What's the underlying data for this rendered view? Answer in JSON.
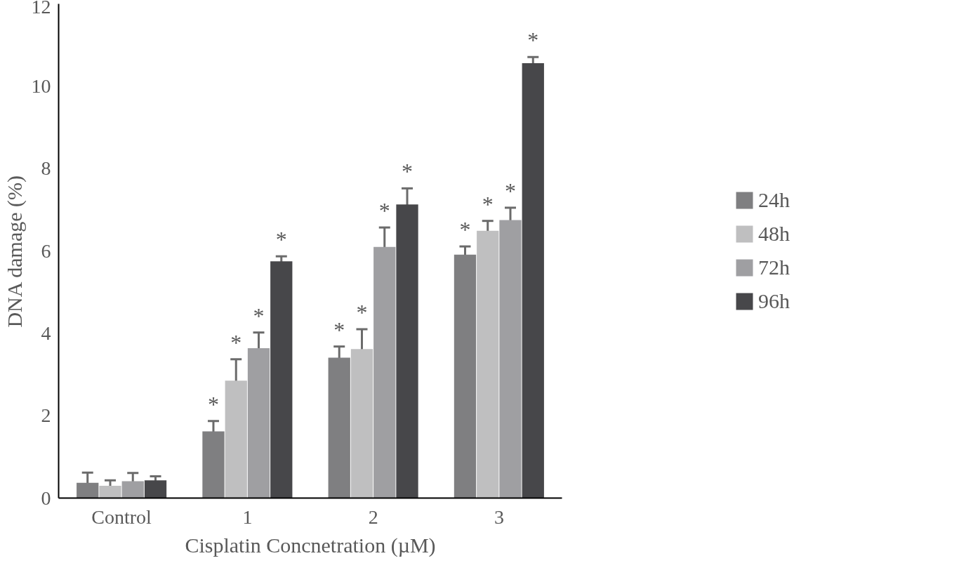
{
  "chart_data": {
    "type": "bar",
    "xlabel": "Cisplatin Concnetration (µM)",
    "ylabel": "DNA damage (%)",
    "categories": [
      "Control",
      "1",
      "2",
      "3"
    ],
    "ylim": [
      0,
      12
    ],
    "yticks": [
      0,
      2,
      4,
      6,
      8,
      10,
      12
    ],
    "grid": false,
    "legend": "right",
    "series": [
      {
        "name": "24h",
        "color": "#7f7f81",
        "values": [
          0.37,
          1.62,
          3.41,
          5.91
        ],
        "errors": [
          0.25,
          0.25,
          0.27,
          0.2
        ],
        "value_labels": [
          null,
          "*",
          "*",
          "*"
        ]
      },
      {
        "name": "48h",
        "color": "#bfbfc0",
        "values": [
          0.3,
          2.85,
          3.62,
          6.49
        ],
        "errors": [
          0.13,
          0.52,
          0.48,
          0.24
        ],
        "value_labels": [
          null,
          "*",
          "*",
          "*"
        ]
      },
      {
        "name": "72h",
        "color": "#9f9fa2",
        "values": [
          0.41,
          3.64,
          6.1,
          6.75
        ],
        "errors": [
          0.2,
          0.38,
          0.47,
          0.3
        ],
        "value_labels": [
          null,
          "*",
          "*",
          "*"
        ]
      },
      {
        "name": "96h",
        "color": "#47474a",
        "values": [
          0.43,
          5.75,
          7.13,
          10.56
        ],
        "errors": [
          0.1,
          0.12,
          0.39,
          0.15
        ],
        "value_labels": [
          null,
          "*",
          "*",
          "*"
        ]
      }
    ]
  }
}
